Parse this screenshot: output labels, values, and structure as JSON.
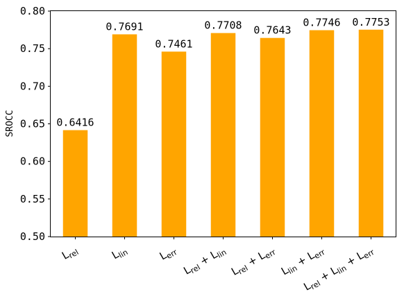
{
  "chart_data": {
    "type": "bar",
    "title": "",
    "xlabel": "",
    "ylabel": "SROCC",
    "ylim": [
      0.5,
      0.8
    ],
    "yticks": [
      "0.50",
      "0.55",
      "0.60",
      "0.65",
      "0.70",
      "0.75",
      "0.80"
    ],
    "categories": [
      "Lrel",
      "Llin",
      "Lerr",
      "Lrel + Llin",
      "Lrel + Lerr",
      "Llin + Lerr",
      "Lrel + Llin + Lerr"
    ],
    "category_labels": [
      [
        {
          "L": "L",
          "s": "rel"
        }
      ],
      [
        {
          "L": "L",
          "s": "lin"
        }
      ],
      [
        {
          "L": "L",
          "s": "err"
        }
      ],
      [
        {
          "L": "L",
          "s": "rel"
        },
        {
          "L": "L",
          "s": "lin"
        }
      ],
      [
        {
          "L": "L",
          "s": "rel"
        },
        {
          "L": "L",
          "s": "err"
        }
      ],
      [
        {
          "L": "L",
          "s": "lin"
        },
        {
          "L": "L",
          "s": "err"
        }
      ],
      [
        {
          "L": "L",
          "s": "rel"
        },
        {
          "L": "L",
          "s": "lin"
        },
        {
          "L": "L",
          "s": "err"
        }
      ]
    ],
    "values": [
      0.6416,
      0.7691,
      0.7461,
      0.7708,
      0.7643,
      0.7746,
      0.7753
    ],
    "value_labels": [
      "0.6416",
      "0.7691",
      "0.7461",
      "0.7708",
      "0.7643",
      "0.7746",
      "0.7753"
    ],
    "bar_color": "#FFA500",
    "grid": false,
    "legend": "none"
  }
}
